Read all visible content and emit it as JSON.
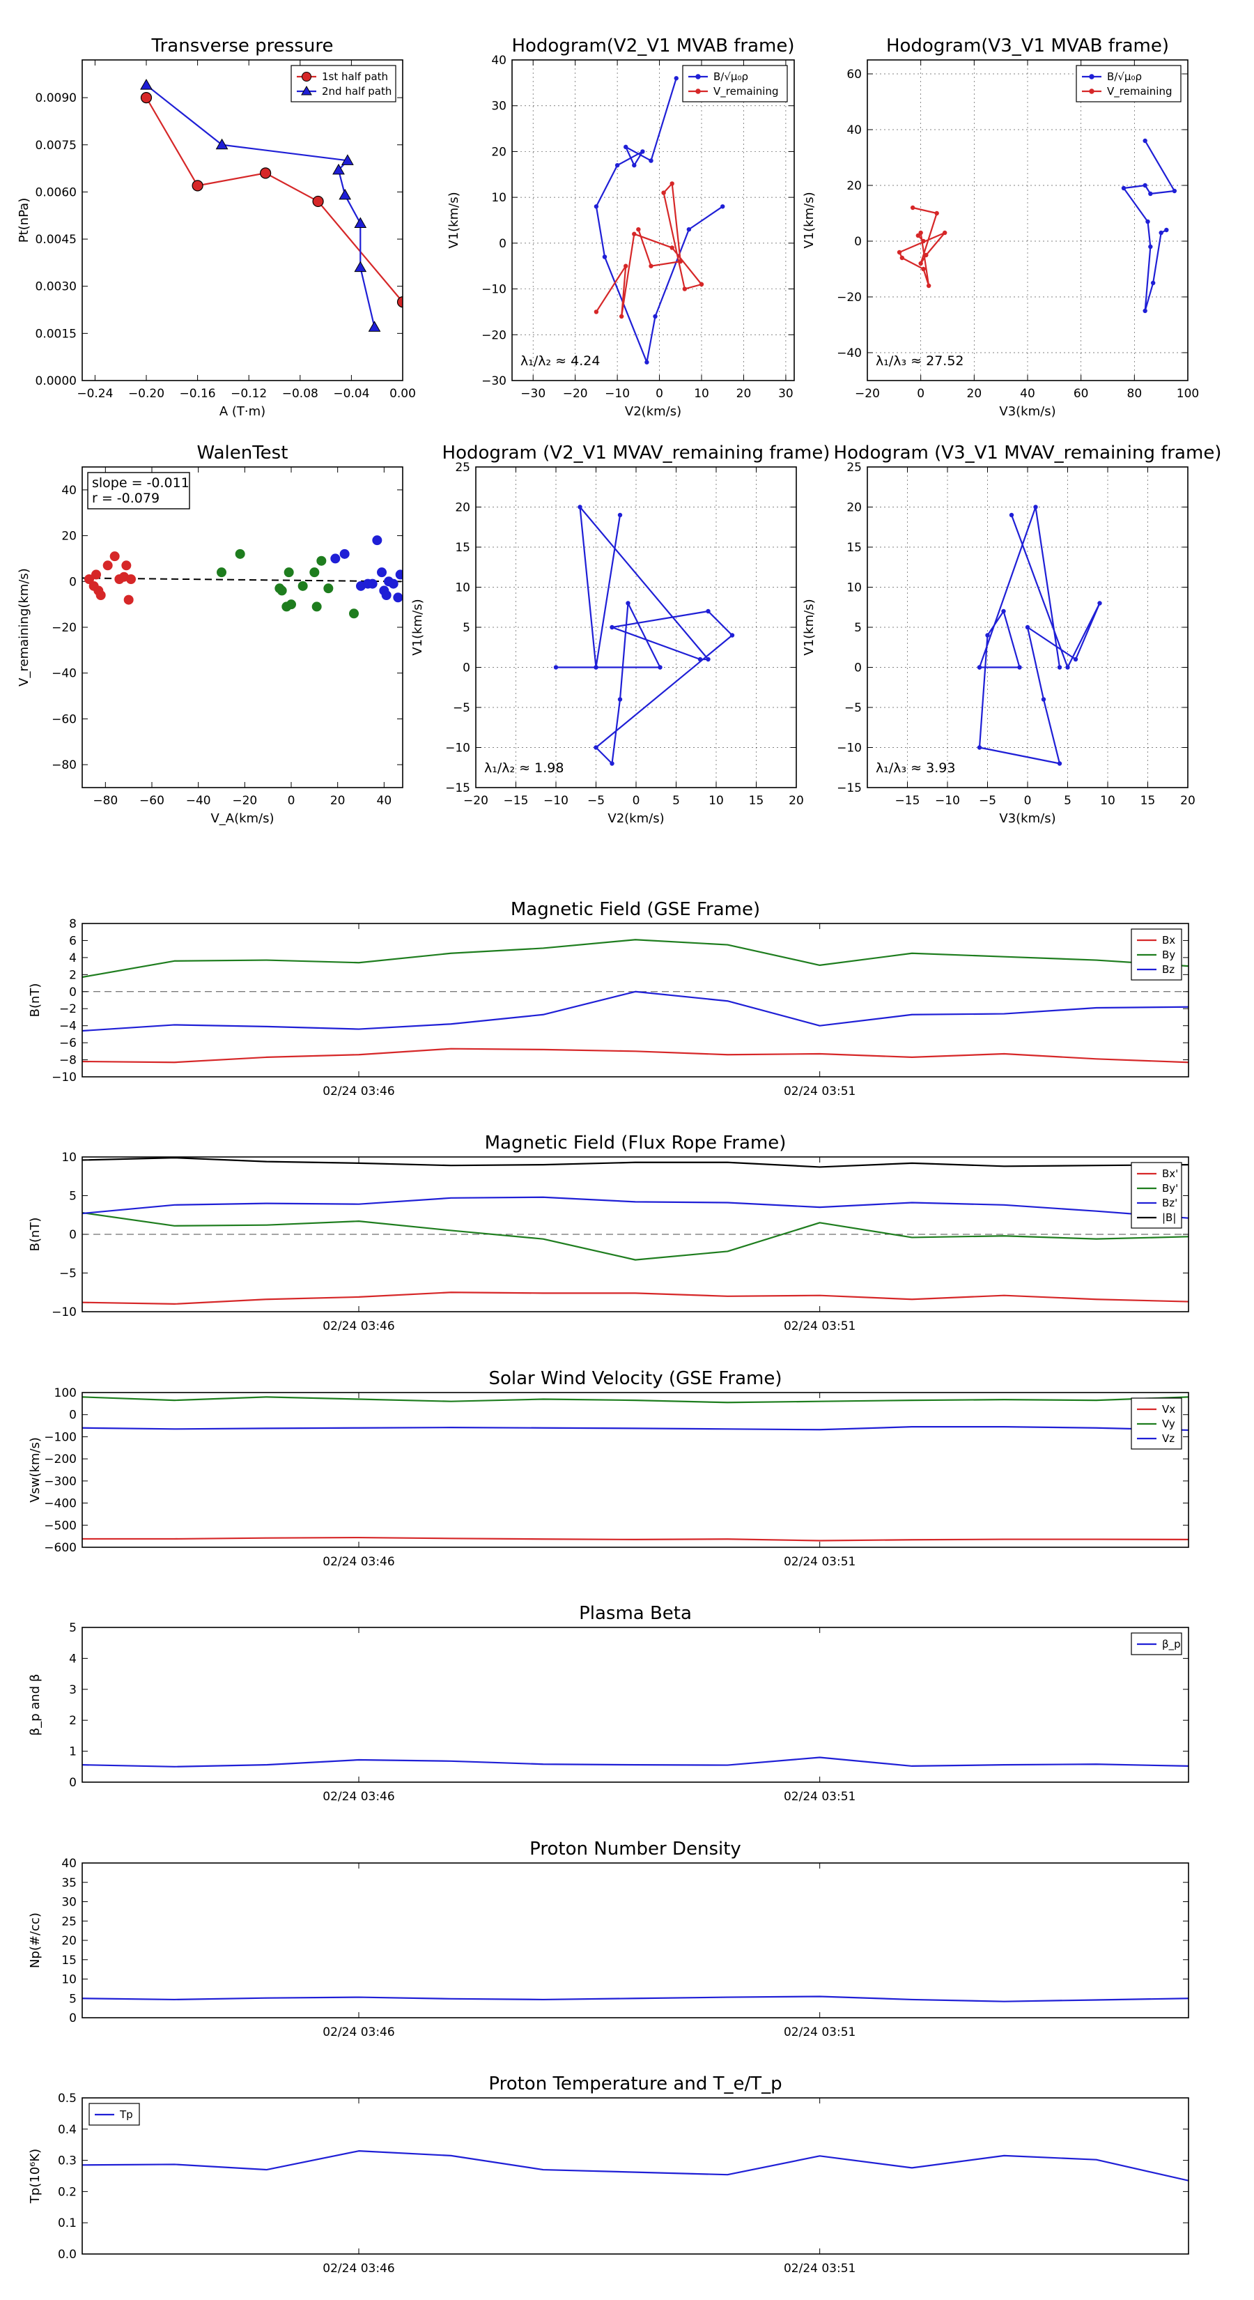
{
  "colors": {
    "red": "#d62728",
    "blue": "#1f1fd6",
    "green": "#1e7d1e",
    "black": "#000000",
    "gray": "#555555"
  },
  "chart_data": [
    {
      "id": "transverse",
      "type": "line",
      "title": "Transverse pressure",
      "xlabel": "A (T·m)",
      "ylabel": "Pt(nPa)",
      "xlim": [
        -0.25,
        0.0
      ],
      "ylim": [
        0.0,
        0.0102
      ],
      "xticks": [
        -0.24,
        -0.2,
        -0.16,
        -0.12,
        -0.08,
        -0.04,
        0.0
      ],
      "xticklabels": [
        "−0.24",
        "−0.20",
        "−0.16",
        "−0.12",
        "−0.08",
        "−0.04",
        "0.00"
      ],
      "yticks": [
        0.0,
        0.0015,
        0.003,
        0.0045,
        0.006,
        0.0075,
        0.009
      ],
      "yticklabels": [
        "0.0000",
        "0.0015",
        "0.0030",
        "0.0045",
        "0.0060",
        "0.0075",
        "0.0090"
      ],
      "legend": "top-right",
      "series": [
        {
          "name": "1st half path",
          "color": "red",
          "marker": "circle",
          "x": [
            -0.2,
            -0.16,
            -0.107,
            -0.066,
            0.0
          ],
          "y": [
            0.009,
            0.0062,
            0.0066,
            0.0057,
            0.0025
          ]
        },
        {
          "name": "2nd half path",
          "color": "blue",
          "marker": "triangle",
          "x": [
            -0.2,
            -0.141,
            -0.043,
            -0.05,
            -0.045,
            -0.033,
            -0.033,
            -0.022
          ],
          "y": [
            0.0094,
            0.0075,
            0.007,
            0.0067,
            0.0059,
            0.005,
            0.0036,
            0.0017
          ]
        }
      ]
    },
    {
      "id": "hodo-v2v1-mvab",
      "type": "line",
      "title": "Hodogram(V2_V1 MVAB frame)",
      "xlabel": "V2(km/s)",
      "ylabel": "V1(km/s)",
      "xlim": [
        -35,
        32
      ],
      "ylim": [
        -30,
        40
      ],
      "xticks": [
        -30,
        -20,
        -10,
        0,
        10,
        20,
        30
      ],
      "xticklabels": [
        "−30",
        "−20",
        "−10",
        "0",
        "10",
        "20",
        "30"
      ],
      "yticks": [
        -30,
        -20,
        -10,
        0,
        10,
        20,
        30,
        40
      ],
      "yticklabels": [
        "−30",
        "−20",
        "−10",
        "0",
        "10",
        "20",
        "30",
        "40"
      ],
      "grid": true,
      "legend": "top-right",
      "annotation": "λ₁/λ₂ ≈ 4.24",
      "series": [
        {
          "name": "B/√μ₀ρ",
          "color": "blue",
          "x": [
            4,
            -2,
            -8,
            -6,
            -4,
            -10,
            -15,
            -13,
            -3,
            -1,
            7,
            15
          ],
          "y": [
            36,
            18,
            21,
            17,
            20,
            17,
            8,
            -3,
            -26,
            -16,
            3,
            8
          ]
        },
        {
          "name": "V_remaining",
          "color": "red",
          "x": [
            -15,
            -8,
            -9,
            -6,
            3,
            10,
            6,
            1,
            3,
            5,
            -2,
            -5
          ],
          "y": [
            -15,
            -5,
            -16,
            2,
            -1,
            -9,
            -10,
            11,
            13,
            -4,
            -5,
            3
          ]
        }
      ]
    },
    {
      "id": "hodo-v3v1-mvab",
      "type": "line",
      "title": "Hodogram(V3_V1 MVAB frame)",
      "xlabel": "V3(km/s)",
      "ylabel": "V1(km/s)",
      "xlim": [
        -20,
        100
      ],
      "ylim": [
        -50,
        65
      ],
      "xticks": [
        -20,
        0,
        20,
        40,
        60,
        80,
        100
      ],
      "xticklabels": [
        "−20",
        "0",
        "20",
        "40",
        "60",
        "80",
        "100"
      ],
      "yticks": [
        -40,
        -20,
        0,
        20,
        40,
        60
      ],
      "yticklabels": [
        "−40",
        "−20",
        "0",
        "20",
        "40",
        "60"
      ],
      "grid": true,
      "legend": "top-right",
      "annotation": "λ₁/λ₃ ≈ 27.52",
      "series": [
        {
          "name": "B/√μ₀ρ",
          "color": "blue",
          "x": [
            84,
            95,
            86,
            84,
            76,
            85,
            86,
            84,
            87,
            90,
            92
          ],
          "y": [
            36,
            18,
            17,
            20,
            19,
            7,
            -2,
            -25,
            -15,
            3,
            4
          ]
        },
        {
          "name": "V_remaining",
          "color": "red",
          "x": [
            -3,
            6,
            0,
            2,
            9,
            -8,
            -7,
            1,
            3,
            0,
            -1,
            1
          ],
          "y": [
            12,
            10,
            -8,
            -5,
            3,
            -4,
            -6,
            -10,
            -16,
            3,
            2,
            0
          ]
        }
      ]
    },
    {
      "id": "walen",
      "type": "scatter",
      "title": "WalenTest",
      "xlabel": "V_A(km/s)",
      "ylabel": "V_remaining(km/s)",
      "xlim": [
        -90,
        48
      ],
      "ylim": [
        -90,
        50
      ],
      "xticks": [
        -80,
        -60,
        -40,
        -20,
        0,
        20,
        40
      ],
      "xticklabels": [
        "−80",
        "−60",
        "−40",
        "−20",
        "0",
        "20",
        "40"
      ],
      "yticks": [
        -80,
        -60,
        -40,
        -20,
        0,
        20,
        40
      ],
      "yticklabels": [
        "−80",
        "−60",
        "−40",
        "−20",
        "0",
        "20",
        "40"
      ],
      "annotation_lines": [
        "slope = -0.011",
        "r = -0.079"
      ],
      "fit": {
        "slope": -0.011,
        "intercept": 0.5
      },
      "series": [
        {
          "color": "red",
          "x": [
            -87,
            -85,
            -84,
            -83,
            -82,
            -79,
            -76,
            -74,
            -72,
            -71,
            -70,
            -69
          ],
          "y": [
            1,
            -2,
            3,
            -4,
            -6,
            7,
            11,
            1,
            2,
            7,
            -8,
            1
          ]
        },
        {
          "color": "green",
          "x": [
            -30,
            -22,
            -5,
            -4,
            -2,
            -1,
            0,
            5,
            10,
            11,
            13,
            16,
            27
          ],
          "y": [
            4,
            12,
            -3,
            -4,
            -11,
            4,
            -10,
            -2,
            4,
            -11,
            9,
            -3,
            -14
          ]
        },
        {
          "color": "blue",
          "x": [
            19,
            23,
            30,
            33,
            35,
            37,
            39,
            40,
            41,
            42,
            44,
            46,
            47
          ],
          "y": [
            10,
            12,
            -2,
            -1,
            -1,
            18,
            4,
            -4,
            -6,
            0,
            -1,
            -7,
            3
          ]
        }
      ]
    },
    {
      "id": "hodo-v2v1-mvav",
      "type": "line",
      "title": "Hodogram (V2_V1 MVAV_remaining frame)",
      "xlabel": "V2(km/s)",
      "ylabel": "V1(km/s)",
      "xlim": [
        -20,
        20
      ],
      "ylim": [
        -15,
        25
      ],
      "xticks": [
        -20,
        -15,
        -10,
        -5,
        0,
        5,
        10,
        15,
        20
      ],
      "xticklabels": [
        "−20",
        "−15",
        "−10",
        "−5",
        "0",
        "5",
        "10",
        "15",
        "20"
      ],
      "yticks": [
        -15,
        -10,
        -5,
        0,
        5,
        10,
        15,
        20,
        25
      ],
      "yticklabels": [
        "−15",
        "−10",
        "−5",
        "0",
        "5",
        "10",
        "15",
        "20",
        "25"
      ],
      "grid": true,
      "annotation": "λ₁/λ₂ ≈ 1.98",
      "series": [
        {
          "color": "blue",
          "x": [
            -2,
            -5,
            -10,
            3,
            -1,
            -2,
            -3,
            -5,
            12,
            9,
            -3,
            8,
            9,
            -7,
            -5
          ],
          "y": [
            19,
            0,
            0,
            0,
            8,
            -4,
            -12,
            -10,
            4,
            7,
            5,
            1,
            1,
            20,
            0
          ]
        }
      ]
    },
    {
      "id": "hodo-v3v1-mvav",
      "type": "line",
      "title": "Hodogram (V3_V1 MVAV_remaining frame)",
      "xlabel": "V3(km/s)",
      "ylabel": "V1(km/s)",
      "xlim": [
        -20,
        20
      ],
      "ylim": [
        -15,
        25
      ],
      "xticks": [
        -15,
        -10,
        -5,
        0,
        5,
        10,
        15,
        20
      ],
      "xticklabels": [
        "−15",
        "−10",
        "−5",
        "0",
        "5",
        "10",
        "15",
        "20"
      ],
      "yticks": [
        -15,
        -10,
        -5,
        0,
        5,
        10,
        15,
        20,
        25
      ],
      "yticklabels": [
        "−15",
        "−10",
        "−5",
        "0",
        "5",
        "10",
        "15",
        "20",
        "25"
      ],
      "grid": true,
      "annotation": "λ₁/λ₃ ≈ 3.93",
      "series": [
        {
          "color": "blue",
          "x": [
            -2,
            5,
            9,
            6,
            0,
            2,
            4,
            -6,
            -5,
            -3,
            -1,
            -6,
            -6,
            1,
            4
          ],
          "y": [
            19,
            0,
            8,
            1,
            5,
            -4,
            -12,
            -10,
            4,
            7,
            0,
            0,
            0,
            20,
            0
          ]
        }
      ]
    },
    {
      "id": "bgse",
      "type": "line",
      "title": "Magnetic Field (GSE Frame)",
      "ylabel": "B(nT)",
      "xticklabels": [
        "02/24 03:46",
        "02/24 03:51"
      ],
      "xtick_positions": [
        3,
        8
      ],
      "xlim": [
        0,
        12
      ],
      "ylim": [
        -10,
        8
      ],
      "yticks": [
        -10,
        -8,
        -6,
        -4,
        -2,
        0,
        2,
        4,
        6,
        8
      ],
      "yticklabels": [
        "−10",
        "−8",
        "−6",
        "−4",
        "−2",
        "0",
        "2",
        "4",
        "6",
        "8"
      ],
      "zero_line": true,
      "legend": "top-right",
      "series": [
        {
          "name": "Bx",
          "color": "red",
          "values": [
            -8.2,
            -8.3,
            -7.7,
            -7.4,
            -6.7,
            -6.8,
            -7.0,
            -7.4,
            -7.3,
            -7.7,
            -7.3,
            -7.9,
            -8.3
          ]
        },
        {
          "name": "By",
          "color": "green",
          "values": [
            1.7,
            3.6,
            3.7,
            3.4,
            4.5,
            5.1,
            6.1,
            5.5,
            3.1,
            4.5,
            4.1,
            3.7,
            3.0
          ]
        },
        {
          "name": "Bz",
          "color": "blue",
          "values": [
            -4.6,
            -3.9,
            -4.1,
            -4.4,
            -3.8,
            -2.7,
            0.0,
            -1.1,
            -4.0,
            -2.7,
            -2.6,
            -1.9,
            -1.8
          ]
        }
      ]
    },
    {
      "id": "bfr",
      "type": "line",
      "title": "Magnetic Field (Flux Rope Frame)",
      "ylabel": "B(nT)",
      "xticklabels": [
        "02/24 03:46",
        "02/24 03:51"
      ],
      "xtick_positions": [
        3,
        8
      ],
      "xlim": [
        0,
        12
      ],
      "ylim": [
        -10,
        10
      ],
      "yticks": [
        -10,
        -5,
        0,
        5,
        10
      ],
      "yticklabels": [
        "−10",
        "−5",
        "0",
        "5",
        "10"
      ],
      "zero_line": true,
      "legend": "top-right",
      "series": [
        {
          "name": "Bx'",
          "color": "red",
          "values": [
            -8.8,
            -9.0,
            -8.4,
            -8.1,
            -7.5,
            -7.6,
            -7.6,
            -8.0,
            -7.9,
            -8.4,
            -7.9,
            -8.4,
            -8.7
          ]
        },
        {
          "name": "By'",
          "color": "green",
          "values": [
            2.8,
            1.1,
            1.2,
            1.7,
            0.5,
            -0.6,
            -3.3,
            -2.2,
            1.5,
            -0.4,
            -0.2,
            -0.6,
            -0.3
          ]
        },
        {
          "name": "Bz'",
          "color": "blue",
          "values": [
            2.7,
            3.8,
            4.0,
            3.9,
            4.7,
            4.8,
            4.2,
            4.1,
            3.5,
            4.1,
            3.8,
            3.0,
            2.1
          ]
        },
        {
          "name": "|B|",
          "color": "black",
          "values": [
            9.6,
            9.9,
            9.4,
            9.2,
            8.9,
            9.0,
            9.3,
            9.3,
            8.7,
            9.2,
            8.8,
            8.9,
            9.0
          ]
        }
      ]
    },
    {
      "id": "vsw",
      "type": "line",
      "title": "Solar Wind Velocity (GSE Frame)",
      "ylabel": "Vsw(km/s)",
      "xticklabels": [
        "02/24 03:46",
        "02/24 03:51"
      ],
      "xtick_positions": [
        3,
        8
      ],
      "xlim": [
        0,
        12
      ],
      "ylim": [
        -600,
        100
      ],
      "yticks": [
        -600,
        -500,
        -400,
        -300,
        -200,
        -100,
        0,
        100
      ],
      "yticklabels": [
        "−600",
        "−500",
        "−400",
        "−300",
        "−200",
        "−100",
        "0",
        "100"
      ],
      "legend": "top-right",
      "series": [
        {
          "name": "Vx",
          "color": "red",
          "values": [
            -562,
            -562,
            -558,
            -556,
            -560,
            -563,
            -565,
            -563,
            -570,
            -566,
            -564,
            -564,
            -565
          ]
        },
        {
          "name": "Vy",
          "color": "green",
          "values": [
            80,
            65,
            80,
            70,
            60,
            70,
            65,
            55,
            60,
            65,
            68,
            65,
            80
          ]
        },
        {
          "name": "Vz",
          "color": "blue",
          "values": [
            -60,
            -65,
            -62,
            -60,
            -58,
            -60,
            -62,
            -65,
            -68,
            -55,
            -55,
            -60,
            -70
          ]
        }
      ]
    },
    {
      "id": "beta",
      "type": "line",
      "title": "Plasma Beta",
      "ylabel": "β_p and β",
      "xticklabels": [
        "02/24 03:46",
        "02/24 03:51"
      ],
      "xtick_positions": [
        3,
        8
      ],
      "xlim": [
        0,
        12
      ],
      "ylim": [
        0,
        5
      ],
      "yticks": [
        0,
        1,
        2,
        3,
        4,
        5
      ],
      "yticklabels": [
        "0",
        "1",
        "2",
        "3",
        "4",
        "5"
      ],
      "legend": "top-right",
      "series": [
        {
          "name": "β_p",
          "color": "blue",
          "values": [
            0.56,
            0.5,
            0.56,
            0.72,
            0.68,
            0.58,
            0.56,
            0.55,
            0.8,
            0.52,
            0.56,
            0.58,
            0.52
          ]
        }
      ]
    },
    {
      "id": "np",
      "type": "line",
      "title": "Proton Number Density",
      "ylabel": "Np(#/cc)",
      "xticklabels": [
        "02/24 03:46",
        "02/24 03:51"
      ],
      "xtick_positions": [
        3,
        8
      ],
      "xlim": [
        0,
        12
      ],
      "ylim": [
        0,
        40
      ],
      "yticks": [
        0,
        5,
        10,
        15,
        20,
        25,
        30,
        35,
        40
      ],
      "yticklabels": [
        "0",
        "5",
        "10",
        "15",
        "20",
        "25",
        "30",
        "35",
        "40"
      ],
      "series": [
        {
          "color": "blue",
          "values": [
            5.0,
            4.7,
            5.1,
            5.3,
            4.9,
            4.7,
            5.0,
            5.3,
            5.5,
            4.7,
            4.2,
            4.6,
            5.0
          ]
        }
      ]
    },
    {
      "id": "tp",
      "type": "line",
      "title": "Proton Temperature and T_e/T_p",
      "ylabel": "Tp(10⁶K)",
      "xticklabels": [
        "02/24 03:46",
        "02/24 03:51"
      ],
      "xtick_positions": [
        3,
        8
      ],
      "xlim": [
        0,
        12
      ],
      "ylim": [
        0,
        0.5
      ],
      "yticks": [
        0,
        0.1,
        0.2,
        0.3,
        0.4,
        0.5
      ],
      "yticklabels": [
        "0.0",
        "0.1",
        "0.2",
        "0.3",
        "0.4",
        "0.5"
      ],
      "legend": "top-left",
      "series": [
        {
          "name": "Tp",
          "color": "blue",
          "values": [
            0.285,
            0.287,
            0.27,
            0.33,
            0.315,
            0.27,
            0.262,
            0.254,
            0.314,
            0.276,
            0.315,
            0.302,
            0.235
          ]
        }
      ]
    }
  ]
}
